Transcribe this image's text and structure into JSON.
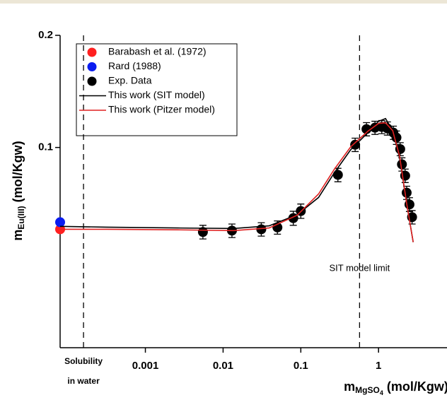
{
  "chart_data": {
    "type": "scatter",
    "xlabel": {
      "main": "m",
      "sub": "MgSO",
      "subsub": "4",
      "unit": "(mol/Kgw)"
    },
    "ylabel": {
      "main": "m",
      "sub": "Eu(III)",
      "unit": "(mol/Kgw)"
    },
    "xscale": "log",
    "yscale": "log",
    "xlim": [
      8e-05,
      7.6
    ],
    "ylim": [
      0.029,
      0.2
    ],
    "xticks": [
      0.001,
      0.01,
      0.1,
      1
    ],
    "yticks": [
      0.1,
      0.2
    ],
    "legend": "top-left",
    "vlines": [
      {
        "x": 0.00016,
        "label": [
          "Solubility",
          "in water"
        ]
      },
      {
        "x": 0.57,
        "label": "SIT model limit"
      }
    ],
    "series": [
      {
        "name": "Barabash et al. (1972)",
        "mode": "markers",
        "color": "#ff2020",
        "x": [
          8e-05
        ],
        "values": [
          0.0603
        ]
      },
      {
        "name": "Rard (1988)",
        "mode": "markers",
        "color": "#0a1cf0",
        "x": [
          8e-05
        ],
        "values": [
          0.063
        ]
      },
      {
        "name": "Exp. Data",
        "mode": "markers",
        "color": "#000000",
        "x": [
          0.0055,
          0.013,
          0.031,
          0.05,
          0.08,
          0.1,
          0.3,
          0.5,
          0.7,
          0.9,
          1.1,
          1.3,
          1.55,
          1.7,
          1.9,
          2.0,
          2.2,
          2.3,
          2.5,
          2.7
        ],
        "values": [
          0.0593,
          0.0598,
          0.0603,
          0.061,
          0.0646,
          0.0675,
          0.0844,
          0.1017,
          0.112,
          0.113,
          0.1135,
          0.1125,
          0.1096,
          0.1063,
          0.099,
          0.0901,
          0.084,
          0.0756,
          0.0703,
          0.065
        ],
        "errors": [
          0.0025,
          0.0025,
          0.0025,
          0.0025,
          0.0028,
          0.003,
          0.0035,
          0.0042,
          0.0046,
          0.0046,
          0.0046,
          0.0046,
          0.0045,
          0.0044,
          0.004,
          0.0037,
          0.0035,
          0.0031,
          0.003,
          0.0027
        ]
      },
      {
        "name": "This work (SIT model)",
        "mode": "line",
        "color": "#000000",
        "x": [
          8e-05,
          0.000316,
          0.0026,
          0.0137,
          0.039,
          0.09,
          0.169,
          0.27,
          0.44,
          0.73,
          1,
          1.23,
          1.52,
          1.87,
          2.31,
          2.79
        ],
        "values": [
          0.0614,
          0.0611,
          0.0608,
          0.0606,
          0.0616,
          0.066,
          0.0734,
          0.0855,
          0.0987,
          0.1096,
          0.1175,
          0.1196,
          0.111,
          0.0933,
          0.0703,
          0.0557
        ]
      },
      {
        "name": "This work (Pitzer model)",
        "mode": "line",
        "color": "#e02020",
        "x": [
          8e-05,
          0.000316,
          0.0026,
          0.0137,
          0.039,
          0.09,
          0.169,
          0.27,
          0.44,
          0.73,
          1,
          1.23,
          1.52,
          1.87,
          2.31,
          2.79
        ],
        "values": [
          0.0603,
          0.0603,
          0.0601,
          0.0598,
          0.0608,
          0.0658,
          0.075,
          0.0874,
          0.1005,
          0.1106,
          0.116,
          0.1165,
          0.111,
          0.0945,
          0.0703,
          0.0557
        ]
      }
    ]
  }
}
